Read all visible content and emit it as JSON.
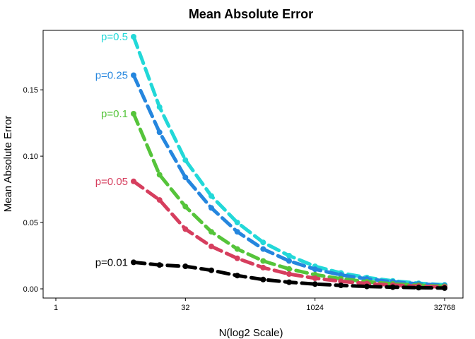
{
  "chart_data": {
    "type": "line",
    "title": "Mean Absolute Error",
    "xlabel": "N(log2 Scale)",
    "ylabel": "Mean Absolute Error",
    "x_scale": "log2",
    "xlim": [
      1,
      32768
    ],
    "ylim": [
      0,
      0.19
    ],
    "x_ticks": [
      1,
      32,
      1024,
      32768
    ],
    "x_tick_labels": [
      "1",
      "32",
      "1024",
      "32768"
    ],
    "y_ticks": [
      0.0,
      0.05,
      0.1,
      0.15
    ],
    "y_tick_labels": [
      "0.00",
      "0.05",
      "0.10",
      "0.15"
    ],
    "grid": false,
    "legend": "direct labels at line starts",
    "x": [
      8,
      16,
      32,
      64,
      128,
      256,
      512,
      1024,
      2048,
      4096,
      8192,
      16384,
      32768
    ],
    "series": [
      {
        "name": "p=0.5",
        "label": "p=0.5",
        "color": "#22D8D8",
        "values": [
          0.19,
          0.137,
          0.097,
          0.07,
          0.05,
          0.035,
          0.025,
          0.017,
          0.012,
          0.0085,
          0.006,
          0.0042,
          0.003
        ]
      },
      {
        "name": "p=0.25",
        "label": "p=0.25",
        "color": "#2586DE",
        "values": [
          0.161,
          0.118,
          0.084,
          0.061,
          0.043,
          0.03,
          0.021,
          0.0148,
          0.0105,
          0.0075,
          0.0053,
          0.0037,
          0.0026
        ]
      },
      {
        "name": "p=0.1",
        "label": "p=0.1",
        "color": "#55C43A",
        "values": [
          0.132,
          0.086,
          0.062,
          0.043,
          0.03,
          0.021,
          0.015,
          0.0107,
          0.0076,
          0.0054,
          0.0038,
          0.0027,
          0.0019
        ]
      },
      {
        "name": "p=0.05",
        "label": "p=0.05",
        "color": "#D63E5E",
        "values": [
          0.081,
          0.067,
          0.045,
          0.032,
          0.023,
          0.016,
          0.0112,
          0.008,
          0.0057,
          0.004,
          0.0028,
          0.002,
          0.0014
        ]
      },
      {
        "name": "p=0.01",
        "label": "p=0.01",
        "color": "#000000",
        "values": [
          0.02,
          0.018,
          0.017,
          0.014,
          0.01,
          0.007,
          0.005,
          0.0036,
          0.0026,
          0.0018,
          0.0013,
          0.0009,
          0.0006
        ]
      }
    ]
  }
}
